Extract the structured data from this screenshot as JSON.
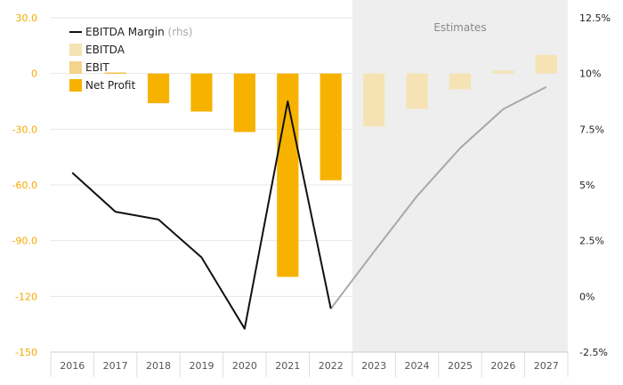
{
  "chart_data": {
    "type": "bar",
    "categories": [
      "2016",
      "2017",
      "2018",
      "2019",
      "2020",
      "2021",
      "2022",
      "2023",
      "2024",
      "2025",
      "2026",
      "2027"
    ],
    "estimates_label": "Estimates",
    "estimates_from": "2023",
    "series": [
      {
        "name": "EBITDA",
        "kind": "bar",
        "values": [
          null,
          null,
          null,
          null,
          null,
          null,
          null,
          -28.5,
          -19,
          -8.5,
          1.5,
          10
        ],
        "color": "#f6e3b4"
      },
      {
        "name": "EBIT",
        "kind": "bar",
        "values": [
          null,
          null,
          null,
          null,
          null,
          null,
          null,
          null,
          null,
          null,
          null,
          null
        ],
        "color": "#f3d48a"
      },
      {
        "name": "Net Profit",
        "kind": "bar",
        "values": [
          null,
          0.5,
          -16,
          -20.5,
          -31.5,
          -109.5,
          -57.5,
          null,
          null,
          null,
          null,
          null
        ],
        "color": "#f7b200"
      },
      {
        "name": "EBITDA Margin",
        "kind": "line",
        "axis": "right",
        "values": [
          5.55,
          3.8,
          3.45,
          1.75,
          -1.45,
          8.75,
          -0.55,
          2.0,
          4.5,
          6.65,
          8.4,
          9.4
        ],
        "color": "#111111",
        "estimate_color": "#a8a8a8"
      }
    ],
    "legend": [
      {
        "label": "EBITDA Margin",
        "suffix": "(rhs)",
        "swatch": "line",
        "color": "#111111"
      },
      {
        "label": "EBITDA",
        "swatch": "box",
        "color": "#f6e3b4"
      },
      {
        "label": "EBIT",
        "swatch": "box",
        "color": "#f3d48a"
      },
      {
        "label": "Net Profit",
        "swatch": "box",
        "color": "#f7b200"
      }
    ],
    "legend_position": "top-left",
    "ylim": [
      -150,
      30
    ],
    "yticks": [
      "30.0",
      "0",
      "-30.0",
      "-60.0",
      "-90.0",
      "-120",
      "-150"
    ],
    "y2lim": [
      -2.5,
      12.5
    ],
    "y2ticks": [
      "12.5%",
      "10%",
      "7.5%",
      "5%",
      "2.5%",
      "0%",
      "-2.5%"
    ],
    "grid": true,
    "colors": {
      "left_axis": "#f2a900",
      "estimates_band": "#eeeeee"
    }
  }
}
